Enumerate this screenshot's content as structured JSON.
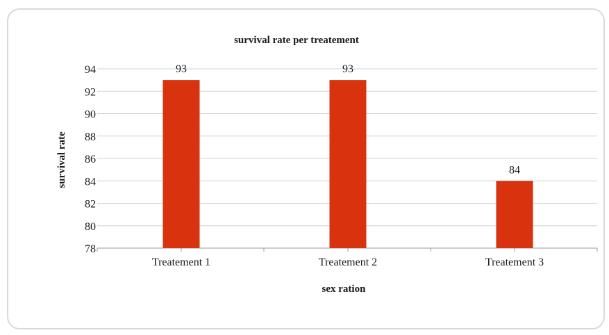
{
  "chart_data": {
    "type": "bar",
    "title": "survival rate per treatement",
    "xlabel": "sex ration",
    "ylabel": "survival rate",
    "categories": [
      "Treatement 1",
      "Treatement 2",
      "Treatement 3"
    ],
    "values": [
      93,
      93,
      84
    ],
    "data_labels": [
      "93",
      "93",
      "84"
    ],
    "ylim": [
      78,
      94
    ],
    "yticks": [
      78,
      80,
      82,
      84,
      86,
      88,
      90,
      92,
      94
    ],
    "grid": true,
    "legend": "none",
    "colors": {
      "bar": "#d9320e",
      "grid": "#d0d0d0",
      "axis": "#9a9a9a",
      "text": "#1a1a1a"
    }
  }
}
